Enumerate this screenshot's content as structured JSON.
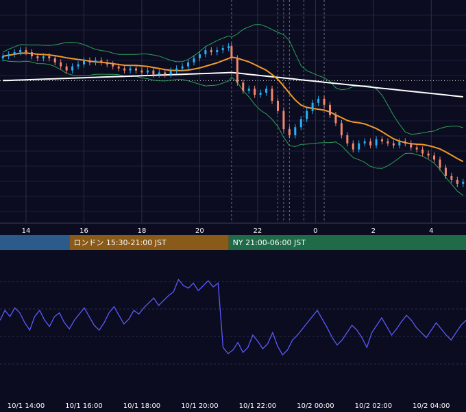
{
  "chart_data": [
    {
      "type": "candlestick",
      "title": "",
      "x_tick_labels": [
        "14",
        "16",
        "18",
        "20",
        "22",
        "0",
        "2",
        "4"
      ],
      "x_tick_hours": [
        14,
        16,
        18,
        20,
        22,
        24,
        26,
        28
      ],
      "x_range_hours": [
        13.1,
        29.2
      ],
      "y_range": [
        0,
        100
      ],
      "grid": true,
      "candles": [
        {
          "t": 13.2,
          "c": 79
        },
        {
          "t": 13.4,
          "c": 80
        },
        {
          "t": 13.6,
          "c": 81
        },
        {
          "t": 13.8,
          "c": 82
        },
        {
          "t": 14.0,
          "c": 81
        },
        {
          "t": 14.2,
          "c": 79
        },
        {
          "t": 14.4,
          "c": 78
        },
        {
          "t": 14.6,
          "c": 79
        },
        {
          "t": 14.8,
          "c": 78
        },
        {
          "t": 15.0,
          "c": 76
        },
        {
          "t": 15.2,
          "c": 74
        },
        {
          "t": 15.4,
          "c": 72
        },
        {
          "t": 15.6,
          "c": 74
        },
        {
          "t": 15.8,
          "c": 75
        },
        {
          "t": 16.0,
          "c": 77
        },
        {
          "t": 16.2,
          "c": 76
        },
        {
          "t": 16.4,
          "c": 77
        },
        {
          "t": 16.6,
          "c": 76
        },
        {
          "t": 16.8,
          "c": 75
        },
        {
          "t": 17.0,
          "c": 74
        },
        {
          "t": 17.2,
          "c": 73
        },
        {
          "t": 17.4,
          "c": 72
        },
        {
          "t": 17.6,
          "c": 73
        },
        {
          "t": 17.8,
          "c": 72
        },
        {
          "t": 18.0,
          "c": 71
        },
        {
          "t": 18.2,
          "c": 72
        },
        {
          "t": 18.4,
          "c": 70
        },
        {
          "t": 18.6,
          "c": 71
        },
        {
          "t": 18.8,
          "c": 70
        },
        {
          "t": 19.0,
          "c": 72
        },
        {
          "t": 19.2,
          "c": 73
        },
        {
          "t": 19.4,
          "c": 74
        },
        {
          "t": 19.6,
          "c": 76
        },
        {
          "t": 19.8,
          "c": 78
        },
        {
          "t": 20.0,
          "c": 80
        },
        {
          "t": 20.2,
          "c": 82
        },
        {
          "t": 20.4,
          "c": 81
        },
        {
          "t": 20.6,
          "c": 82
        },
        {
          "t": 20.8,
          "c": 83
        },
        {
          "t": 21.0,
          "c": 84
        },
        {
          "t": 21.1,
          "c": 78
        },
        {
          "t": 21.3,
          "c": 66
        },
        {
          "t": 21.5,
          "c": 62
        },
        {
          "t": 21.7,
          "c": 63
        },
        {
          "t": 21.9,
          "c": 60
        },
        {
          "t": 22.1,
          "c": 61
        },
        {
          "t": 22.3,
          "c": 63
        },
        {
          "t": 22.5,
          "c": 57
        },
        {
          "t": 22.7,
          "c": 52
        },
        {
          "t": 22.9,
          "c": 43
        },
        {
          "t": 23.1,
          "c": 40
        },
        {
          "t": 23.3,
          "c": 44
        },
        {
          "t": 23.5,
          "c": 48
        },
        {
          "t": 23.7,
          "c": 52
        },
        {
          "t": 23.9,
          "c": 56
        },
        {
          "t": 24.1,
          "c": 58
        },
        {
          "t": 24.3,
          "c": 55
        },
        {
          "t": 24.5,
          "c": 50
        },
        {
          "t": 24.7,
          "c": 46
        },
        {
          "t": 24.9,
          "c": 40
        },
        {
          "t": 25.1,
          "c": 36
        },
        {
          "t": 25.3,
          "c": 33
        },
        {
          "t": 25.5,
          "c": 36
        },
        {
          "t": 25.7,
          "c": 37
        },
        {
          "t": 25.9,
          "c": 35
        },
        {
          "t": 26.1,
          "c": 38
        },
        {
          "t": 26.3,
          "c": 37
        },
        {
          "t": 26.5,
          "c": 36
        },
        {
          "t": 26.7,
          "c": 35
        },
        {
          "t": 26.9,
          "c": 37
        },
        {
          "t": 27.1,
          "c": 36
        },
        {
          "t": 27.3,
          "c": 34
        },
        {
          "t": 27.5,
          "c": 33
        },
        {
          "t": 27.7,
          "c": 31
        },
        {
          "t": 27.9,
          "c": 30
        },
        {
          "t": 28.1,
          "c": 28
        },
        {
          "t": 28.3,
          "c": 24
        },
        {
          "t": 28.5,
          "c": 20
        },
        {
          "t": 28.7,
          "c": 18
        },
        {
          "t": 28.9,
          "c": 16
        },
        {
          "t": 29.1,
          "c": 17
        }
      ],
      "ma_long_color": "#ffffff",
      "ma_mid_color": "#f29b26",
      "band_color": "#2ea05a",
      "reference_level": 67
    },
    {
      "type": "line",
      "title": "",
      "x_tick_labels": [
        "10/1 14:00",
        "10/1 16:00",
        "10/1 18:00",
        "10/1 20:00",
        "10/1 22:00",
        "10/2 00:00",
        "10/2 02:00",
        "10/2 04:00"
      ],
      "x_tick_hours": [
        14,
        16,
        18,
        20,
        22,
        24,
        26,
        28
      ],
      "y_range": [
        0,
        100
      ],
      "line_color": "#5b5bff",
      "values": [
        52,
        60,
        55,
        62,
        58,
        50,
        44,
        55,
        60,
        52,
        47,
        55,
        58,
        50,
        45,
        52,
        57,
        62,
        55,
        48,
        44,
        50,
        58,
        63,
        56,
        49,
        53,
        60,
        57,
        62,
        66,
        70,
        64,
        68,
        72,
        75,
        85,
        80,
        78,
        82,
        76,
        80,
        84,
        79,
        82,
        30,
        25,
        28,
        34,
        26,
        30,
        40,
        35,
        29,
        33,
        42,
        31,
        24,
        28,
        36,
        40,
        45,
        50,
        55,
        60,
        53,
        46,
        38,
        32,
        36,
        42,
        48,
        44,
        38,
        30,
        42,
        48,
        54,
        47,
        40,
        45,
        51,
        56,
        52,
        46,
        42,
        38,
        44,
        50,
        45,
        40,
        36,
        42,
        48,
        52
      ]
    }
  ],
  "sessions": [
    {
      "label": "",
      "color": "#2c5a8a"
    },
    {
      "label": "ロンドン 15:30-21:00 JST",
      "color": "#8a5a18"
    },
    {
      "label": "NY 21:00-06:00 JST",
      "color": "#1f6b48"
    }
  ]
}
